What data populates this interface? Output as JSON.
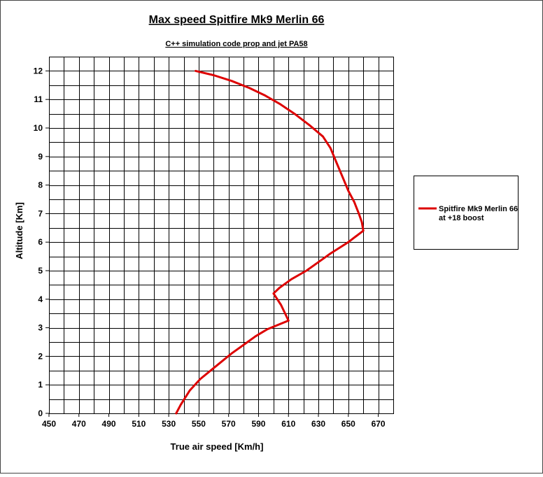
{
  "chart_data": {
    "type": "line",
    "title": "Max speed Spitfire Mk9 Merlin 66",
    "subtitle": "C++ simulation code prop and jet PA58",
    "xlabel": "True air speed [Km/h]",
    "ylabel": "Altitude [Km]",
    "xlim": [
      450,
      680
    ],
    "ylim": [
      0,
      12.5
    ],
    "x_ticks": [
      450,
      470,
      490,
      510,
      530,
      550,
      570,
      590,
      610,
      630,
      650,
      670
    ],
    "y_ticks": [
      0,
      1,
      2,
      3,
      4,
      5,
      6,
      7,
      8,
      9,
      10,
      11,
      12
    ],
    "x_grid_step": 10,
    "y_grid_step": 0.5,
    "grid": true,
    "legend_position": "right",
    "series": [
      {
        "name": "Spitfire Mk9 Merlin 66 at +18 boost",
        "color": "#dd0000",
        "points": [
          [
            535,
            0
          ],
          [
            538,
            0.3
          ],
          [
            544,
            0.8
          ],
          [
            551,
            1.2
          ],
          [
            558,
            1.5
          ],
          [
            565,
            1.8
          ],
          [
            572,
            2.1
          ],
          [
            580,
            2.4
          ],
          [
            588,
            2.7
          ],
          [
            596,
            2.95
          ],
          [
            610,
            3.25
          ],
          [
            605,
            3.8
          ],
          [
            600,
            4.2
          ],
          [
            604,
            4.4
          ],
          [
            612,
            4.7
          ],
          [
            622,
            5.0
          ],
          [
            630,
            5.3
          ],
          [
            638,
            5.6
          ],
          [
            644,
            5.8
          ],
          [
            650,
            6.0
          ],
          [
            655,
            6.2
          ],
          [
            660,
            6.4
          ],
          [
            659,
            6.7
          ],
          [
            657,
            7.0
          ],
          [
            654,
            7.4
          ],
          [
            650,
            7.8
          ],
          [
            646,
            8.3
          ],
          [
            642,
            8.8
          ],
          [
            638,
            9.3
          ],
          [
            633,
            9.7
          ],
          [
            624,
            10.1
          ],
          [
            614,
            10.5
          ],
          [
            604,
            10.85
          ],
          [
            594,
            11.15
          ],
          [
            584,
            11.4
          ],
          [
            572,
            11.65
          ],
          [
            560,
            11.85
          ],
          [
            548,
            12.0
          ]
        ]
      }
    ]
  },
  "legend": {
    "line1": "Spitfire Mk9 Merlin 66",
    "line2": "at +18 boost"
  }
}
